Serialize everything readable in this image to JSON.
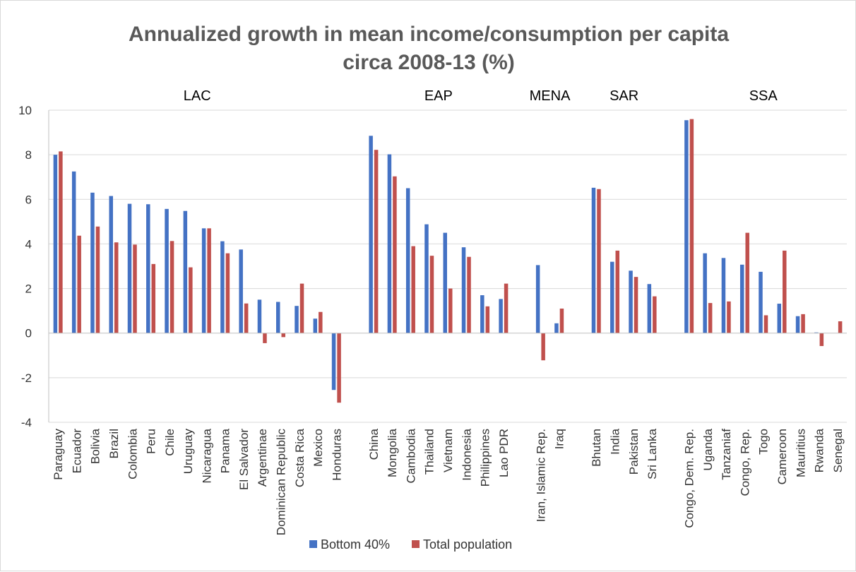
{
  "chart_data": {
    "type": "bar",
    "title_lines": [
      "Annualized growth in mean income/consumption per capita",
      "circa 2008-13 (%)"
    ],
    "xlabel": "",
    "ylabel": "",
    "ylim": [
      -4,
      10
    ],
    "yticks": [
      -4,
      -2,
      0,
      2,
      4,
      6,
      8,
      10
    ],
    "grid": "horizontal",
    "legend_position": "bottom-center",
    "colors": {
      "bottom40": "#4472c4",
      "total": "#c0504d",
      "grid": "#d9d9d9",
      "axis": "#bfbfbf"
    },
    "groups": [
      {
        "label": "LAC",
        "categories": [
          "Paraguay",
          "Ecuador",
          "Bolivia",
          "Brazil",
          "Colombia",
          "Peru",
          "Chile",
          "Uruguay",
          "Nicaragua",
          "Panama",
          "El Salvador",
          "Argentinae",
          "Dominican Republic",
          "Costa Rica",
          "Mexico",
          "Honduras"
        ]
      },
      {
        "label": "EAP",
        "categories": [
          "China",
          "Mongolia",
          "Cambodia",
          "Thailand",
          "Vietnam",
          "Indonesia",
          "Philippines",
          "Lao PDR"
        ]
      },
      {
        "label": "MENA",
        "categories": [
          "Iran, Islamic Rep.",
          "Iraq"
        ]
      },
      {
        "label": "SAR",
        "categories": [
          "Bhutan",
          "India",
          "Pakistan",
          "Sri Lanka"
        ]
      },
      {
        "label": "SSA",
        "categories": [
          "Congo, Dem. Rep.",
          "Uganda",
          "Tanzaniaf",
          "Congo, Rep.",
          "Togo",
          "Cameroon",
          "Mauritius",
          "Rwanda",
          "Senegal"
        ]
      }
    ],
    "series": [
      {
        "name": "Bottom 40%",
        "values": [
          [
            8.0,
            7.25,
            6.3,
            6.15,
            5.8,
            5.78,
            5.57,
            5.48,
            4.7,
            4.12,
            3.75,
            1.5,
            1.4,
            1.22,
            0.65,
            -2.55
          ],
          [
            8.85,
            8.02,
            6.5,
            4.88,
            4.5,
            3.85,
            1.7,
            1.53
          ],
          [
            3.05,
            0.44
          ],
          [
            6.52,
            3.2,
            2.8,
            2.2
          ],
          [
            9.55,
            3.58,
            3.37,
            3.07,
            2.75,
            1.32,
            0.76,
            0.03,
            0.0
          ]
        ]
      },
      {
        "name": "Total population",
        "values": [
          [
            8.15,
            4.37,
            4.78,
            4.07,
            3.97,
            3.1,
            4.13,
            2.95,
            4.7,
            3.58,
            1.33,
            -0.45,
            -0.18,
            2.22,
            0.95,
            -3.12
          ],
          [
            8.22,
            7.03,
            3.9,
            3.47,
            2.0,
            3.42,
            1.2,
            2.22
          ],
          [
            -1.22,
            1.1
          ],
          [
            6.46,
            3.7,
            2.52,
            1.65
          ],
          [
            9.6,
            1.35,
            1.42,
            4.5,
            0.8,
            3.7,
            0.85,
            -0.58,
            0.53
          ]
        ]
      }
    ]
  }
}
